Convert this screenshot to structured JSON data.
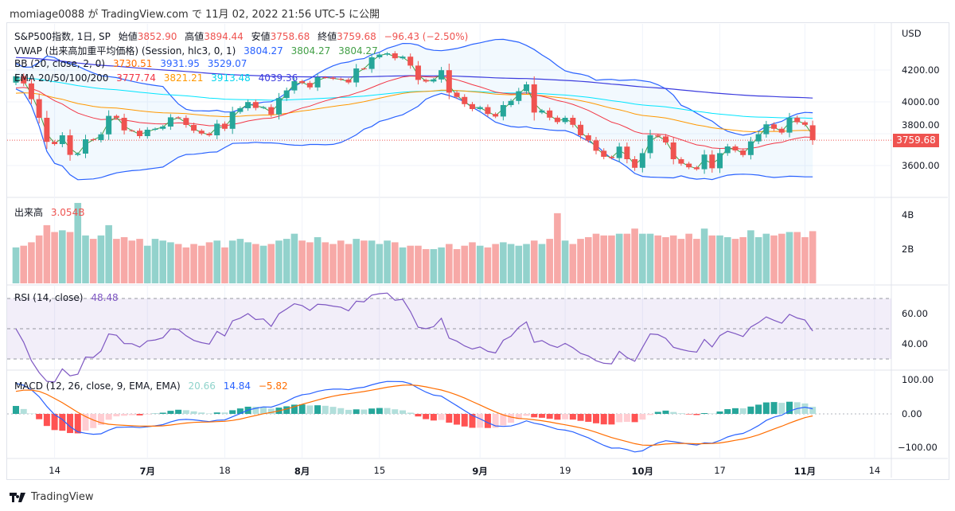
{
  "header": {
    "text": "momiage0088 が TradingView.com で 11月 02, 2022 21:56 UTC-5 に公開"
  },
  "legend": {
    "symbol": "S&P500指数, 1日, SP",
    "open_label": "始値",
    "open": "3852.90",
    "high_label": "高値",
    "high": "3894.44",
    "low_label": "安値",
    "low": "3758.68",
    "close_label": "終値",
    "close": "3759.68",
    "change": "−96.43 (−2.50%)",
    "vwap_title": "VWAP (出来高加重平均価格) (Session, hlc3, 0, 1)",
    "vwap_values": [
      "3804.27",
      "3804.27",
      "3804.27"
    ],
    "bb_title": "BB (20, close, 2, 0)",
    "bb_values": [
      "3730.51",
      "3931.95",
      "3529.07"
    ],
    "ema_title": "EMA 20/50/100/200",
    "ema_values": [
      "3777.74",
      "3821.21",
      "3913.48",
      "4039.36"
    ],
    "volume_title": "出来高",
    "volume_value": "3.054B",
    "rsi_title": "RSI (14, close)",
    "rsi_value": "48.48",
    "macd_title": "MACD (12, 26, close, 9, EMA, EMA)",
    "macd_values": [
      "20.66",
      "14.84",
      "−5.82"
    ]
  },
  "price_axis": {
    "currency": "USD",
    "ticks": [
      "4200.00",
      "4000.00",
      "3800.00",
      "3600.00"
    ],
    "last_price": "3759.68"
  },
  "volume_axis": {
    "ticks": [
      "4B",
      "2B"
    ]
  },
  "rsi_axis": {
    "ticks": [
      "60.00",
      "40.00"
    ]
  },
  "macd_axis": {
    "ticks": [
      "100.00",
      "0.00",
      "−100.00"
    ]
  },
  "time_axis": [
    {
      "label": "14",
      "index": 5,
      "bold": false
    },
    {
      "label": "7月",
      "index": 17,
      "bold": true
    },
    {
      "label": "18",
      "index": 27,
      "bold": false
    },
    {
      "label": "8月",
      "index": 37,
      "bold": true
    },
    {
      "label": "15",
      "index": 47,
      "bold": false
    },
    {
      "label": "9月",
      "index": 60,
      "bold": true
    },
    {
      "label": "19",
      "index": 71,
      "bold": false
    },
    {
      "label": "10月",
      "index": 81,
      "bold": true
    },
    {
      "label": "17",
      "index": 91,
      "bold": false
    },
    {
      "label": "11月",
      "index": 102,
      "bold": true
    },
    {
      "label": "14",
      "index": 111,
      "bold": false
    }
  ],
  "footer": {
    "brand": "TradingView"
  },
  "colors": {
    "up": "#26a69a",
    "down": "#ef5350",
    "bb": "#2962ff",
    "ema20": "#f23645",
    "ema50": "#ff9800",
    "ema100": "#00e5ff",
    "ema200": "#3c3cde",
    "vwap": "#43a047",
    "rsi": "#7e57c2",
    "macd": "#2962ff",
    "signal": "#ff6d00"
  },
  "chart_data": {
    "type": "candlestick",
    "title": "S&P500指数, 1日, SP",
    "ylabel": "USD",
    "ylim": [
      3450,
      4500
    ],
    "first_open": 4121,
    "last_open": 3852.9,
    "closes": [
      4161,
      4116,
      4017,
      3900,
      3749,
      3735,
      3790,
      3667,
      3675,
      3765,
      3760,
      3796,
      3912,
      3900,
      3821,
      3819,
      3785,
      3825,
      3831,
      3845,
      3903,
      3899,
      3855,
      3819,
      3801,
      3790,
      3863,
      3831,
      3937,
      3960,
      3999,
      3962,
      3967,
      3921,
      4024,
      4072,
      4130,
      4119,
      4091,
      4155,
      4152,
      4145,
      4140,
      4122,
      4210,
      4207,
      4280,
      4297,
      4305,
      4274,
      4284,
      4228,
      4138,
      4128,
      4141,
      4199,
      4058,
      4031,
      3986,
      3955,
      3967,
      3924,
      3908,
      3980,
      4006,
      4067,
      4110,
      3933,
      3946,
      3901,
      3873,
      3900,
      3856,
      3790,
      3758,
      3693,
      3655,
      3647,
      3719,
      3640,
      3586,
      3678,
      3791,
      3783,
      3745,
      3640,
      3612,
      3589,
      3577,
      3669,
      3583,
      3678,
      3720,
      3695,
      3666,
      3752,
      3797,
      3859,
      3831,
      3807,
      3901,
      3872,
      3856,
      3759.68
    ],
    "volumes_billions": [
      2.1,
      2.2,
      2.4,
      2.8,
      3.4,
      3.0,
      3.1,
      3.0,
      4.7,
      2.8,
      2.6,
      2.8,
      3.4,
      2.6,
      2.7,
      2.5,
      2.6,
      2.2,
      2.6,
      2.5,
      2.4,
      2.3,
      2.1,
      2.3,
      2.2,
      2.4,
      2.5,
      2.1,
      2.5,
      2.6,
      2.4,
      2.3,
      2.2,
      2.3,
      2.5,
      2.6,
      2.9,
      2.5,
      2.4,
      2.7,
      2.4,
      2.3,
      2.5,
      2.3,
      2.6,
      2.5,
      2.5,
      2.3,
      2.5,
      2.4,
      2.1,
      2.2,
      2.2,
      2.0,
      2.0,
      2.1,
      2.3,
      2.0,
      2.2,
      2.4,
      2.2,
      2.1,
      2.3,
      2.4,
      2.3,
      2.2,
      2.3,
      2.5,
      2.3,
      2.6,
      4.1,
      2.5,
      2.3,
      2.6,
      2.7,
      2.9,
      2.8,
      2.8,
      2.9,
      2.9,
      3.2,
      2.9,
      2.9,
      2.8,
      2.7,
      2.8,
      2.6,
      2.9,
      2.6,
      3.2,
      2.8,
      2.8,
      2.7,
      2.6,
      2.7,
      3.1,
      2.7,
      2.9,
      2.8,
      2.9,
      3.0,
      3.0,
      2.7,
      3.05
    ],
    "ema_seeds": {
      "20": 4080,
      "50": 4050,
      "100": 4150,
      "200": 4280
    },
    "rsi_bands": [
      30,
      70
    ],
    "rsi_ylim": [
      20,
      80
    ],
    "macd_ylim": [
      -130,
      130
    ]
  }
}
